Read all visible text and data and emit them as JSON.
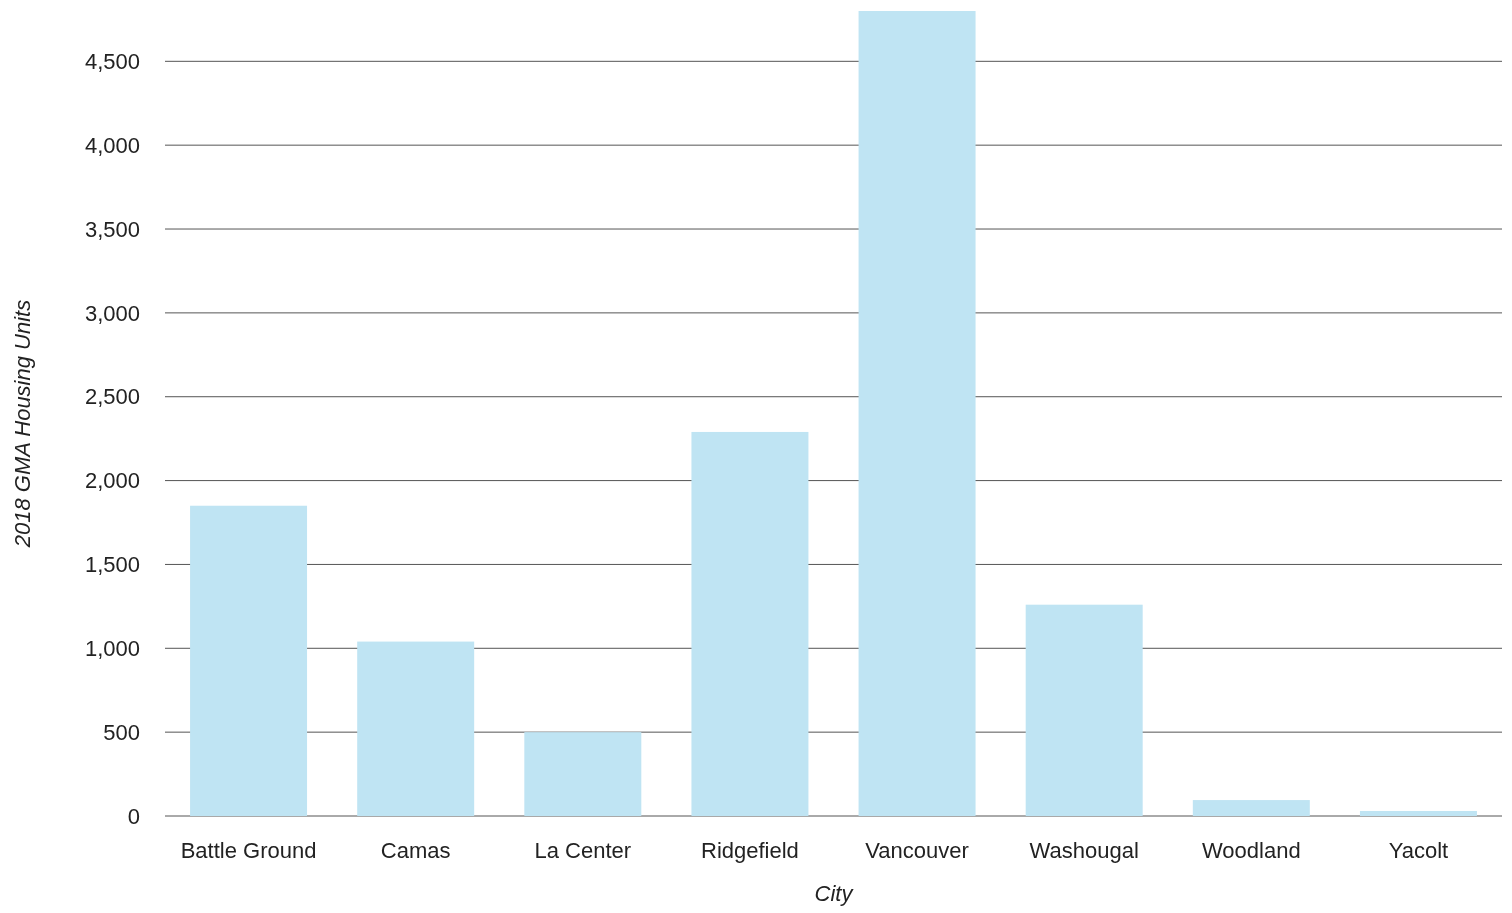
{
  "chart_data": {
    "type": "bar",
    "xlabel": "City",
    "ylabel": "2018 GMA Housing Units",
    "categories": [
      "Battle Ground",
      "Camas",
      "La Center",
      "Ridgefield",
      "Vancouver",
      "Washougal",
      "Woodland",
      "Yacolt"
    ],
    "values": [
      1850,
      1040,
      500,
      2290,
      4800,
      1260,
      95,
      30
    ],
    "color": "#bfe4f3",
    "ylim": [
      0,
      4800
    ],
    "yticks": [
      0,
      {
        "value": 500,
        "label": "500"
      },
      {
        "value": 1000,
        "label": "1,000"
      },
      {
        "value": 1500,
        "label": "1,500"
      },
      {
        "value": 2000,
        "label": "2,000"
      },
      {
        "value": 2500,
        "label": "2,500"
      },
      {
        "value": 3000,
        "label": "3,000"
      },
      {
        "value": 3500,
        "label": "3,500"
      },
      {
        "value": 4000,
        "label": "4,000"
      },
      {
        "value": 4500,
        "label": "4,500"
      }
    ],
    "grid": "y"
  }
}
